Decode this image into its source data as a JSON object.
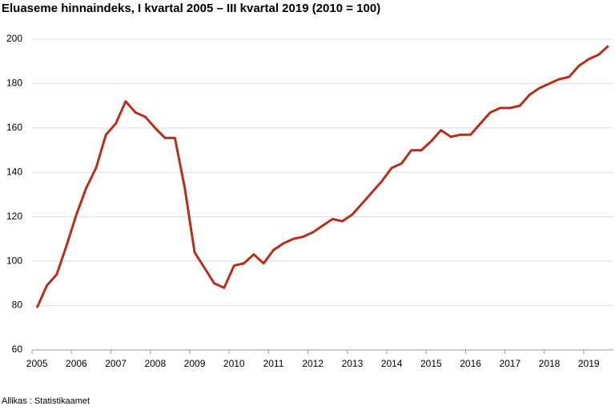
{
  "chart_data": {
    "type": "line",
    "title": "Eluaseme hinnaindeks, I kvartal 2005 – III kvartal 2019 (2010 = 100)",
    "source": "Allikas : Statistikaamet",
    "categories": [
      "2005",
      null,
      null,
      null,
      "2006",
      null,
      null,
      null,
      "2007",
      null,
      null,
      null,
      "2008",
      null,
      null,
      null,
      "2009",
      null,
      null,
      null,
      "2010",
      null,
      null,
      null,
      "2011",
      null,
      null,
      null,
      "2012",
      null,
      null,
      null,
      "2013",
      null,
      null,
      null,
      "2014",
      null,
      null,
      null,
      "2015",
      null,
      null,
      null,
      "2016",
      null,
      null,
      null,
      "2017",
      null,
      null,
      null,
      "2018",
      null,
      null,
      null,
      "2019",
      null,
      null
    ],
    "values": [
      79,
      89,
      94,
      107,
      121,
      133,
      142,
      157,
      162,
      172,
      167,
      165,
      160,
      155.5,
      155.5,
      133,
      104,
      97,
      90,
      88,
      98,
      99,
      103,
      99,
      105,
      108,
      110,
      111,
      113,
      116,
      119,
      118,
      121,
      126,
      131,
      136,
      142,
      144,
      150,
      150,
      154,
      159,
      156,
      157,
      157,
      162,
      167,
      169,
      169,
      170,
      175,
      178,
      180,
      182,
      183,
      188,
      191,
      193,
      197
    ],
    "color": "#b5301b",
    "ylim": [
      60,
      200
    ],
    "yticks": [
      60,
      80,
      100,
      120,
      140,
      160,
      180,
      200
    ],
    "grid": true
  }
}
